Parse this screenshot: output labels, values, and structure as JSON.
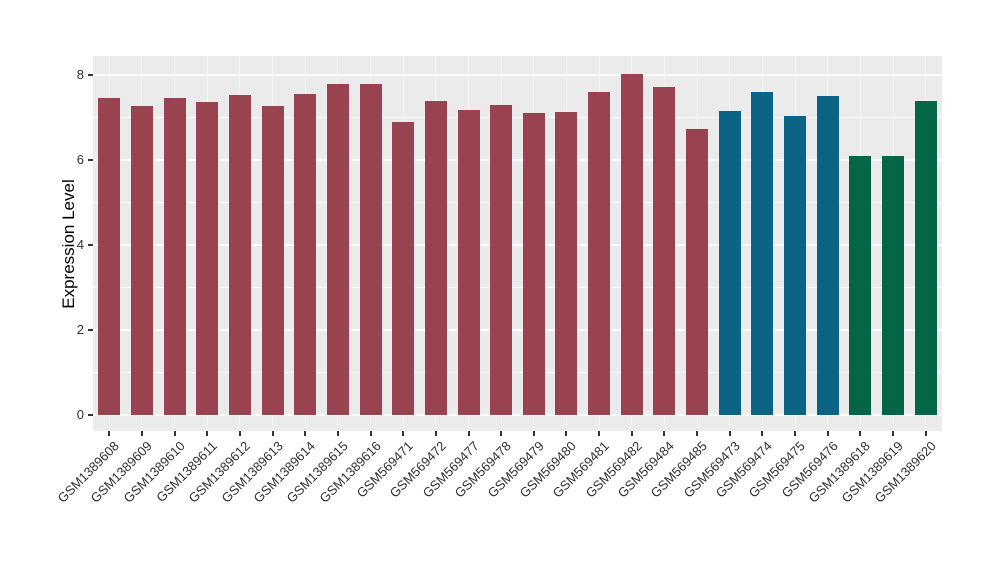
{
  "figure": {
    "title": "",
    "background_color": "#FFFFFF",
    "panel_background_color": "#EBEBEB",
    "grid_color": "#FFFFFF",
    "axis_text_color": "#303030",
    "axis_title_color": "#000000"
  },
  "chart_data": {
    "type": "bar",
    "title": "",
    "xlabel": "",
    "ylabel": "Expression Level",
    "legend": "none",
    "grid": true,
    "categories": [
      "GSM1389608",
      "GSM1389609",
      "GSM1389610",
      "GSM1389611",
      "GSM1389612",
      "GSM1389613",
      "GSM1389614",
      "GSM1389615",
      "GSM1389616",
      "GSM569471",
      "GSM569472",
      "GSM569477",
      "GSM569478",
      "GSM569479",
      "GSM569480",
      "GSM569481",
      "GSM569482",
      "GSM569484",
      "GSM569485",
      "GSM569473",
      "GSM569474",
      "GSM569475",
      "GSM569476",
      "GSM1389618",
      "GSM1389619",
      "GSM1389620"
    ],
    "values": [
      7.45,
      7.28,
      7.46,
      7.36,
      7.54,
      7.28,
      7.56,
      7.78,
      7.78,
      6.9,
      7.4,
      7.17,
      7.29,
      7.11,
      7.13,
      7.61,
      8.03,
      7.71,
      6.72,
      7.15,
      7.6,
      7.03,
      7.51,
      6.09,
      6.09,
      7.4
    ],
    "bar_color_index": [
      0,
      0,
      0,
      0,
      0,
      0,
      0,
      0,
      0,
      0,
      0,
      0,
      0,
      0,
      0,
      0,
      0,
      0,
      0,
      1,
      1,
      1,
      1,
      2,
      2,
      2
    ],
    "palette": [
      "#9A4350",
      "#0B6385",
      "#026647"
    ],
    "yticks": [
      0,
      2,
      4,
      6,
      8
    ],
    "yticks_minor": [
      1,
      3,
      5,
      7
    ],
    "ylim": [
      -0.38,
      8.45
    ]
  }
}
